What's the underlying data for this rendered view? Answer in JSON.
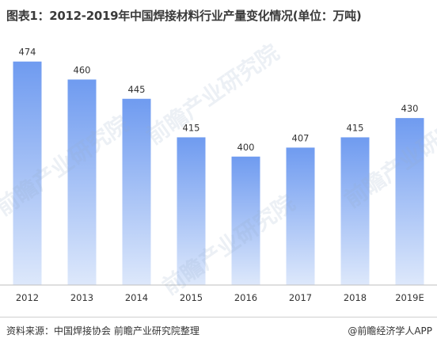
{
  "title": "图表1：2012-2019年中国焊接材料行业产量变化情况(单位：万吨)",
  "source": "资料来源：中国焊接协会 前瞻产业研究院整理",
  "brand": "@前瞻经济学人APP",
  "watermark": "前瞻产业研究院",
  "colors": {
    "bar_top": "#6f9bf0",
    "bar_bottom": "#dde8fb",
    "axis": "#bfbfbf"
  },
  "chart_data": {
    "type": "bar",
    "title": "图表1：2012-2019年中国焊接材料行业产量变化情况(单位：万吨)",
    "categories": [
      "2012",
      "2013",
      "2014",
      "2015",
      "2016",
      "2017",
      "2018",
      "2019E"
    ],
    "values": [
      474,
      460,
      445,
      415,
      400,
      407,
      415,
      430
    ],
    "ylim": [
      300,
      480
    ],
    "grid": false,
    "legend": "none"
  }
}
